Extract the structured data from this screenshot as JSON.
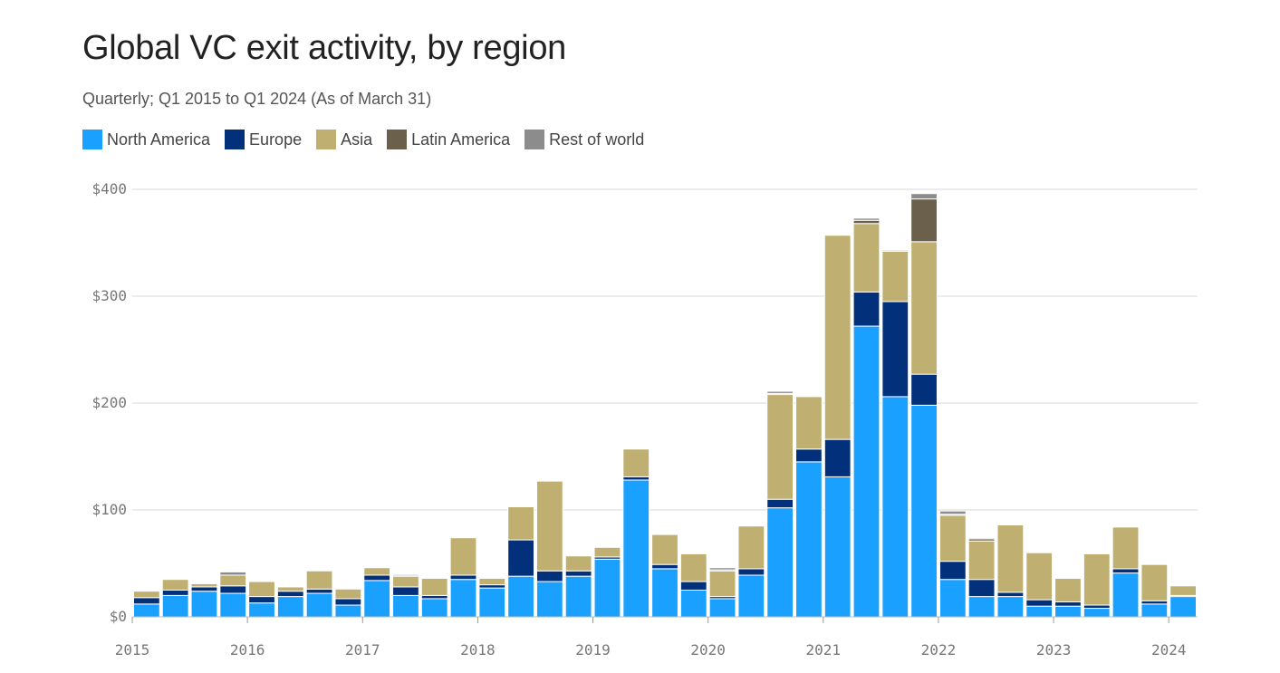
{
  "title": "Global VC exit activity, by region",
  "subtitle": "Quarterly; Q1 2015 to Q1 2024 (As of March 31)",
  "legend": [
    {
      "name": "North America",
      "color": "#1aa0ff"
    },
    {
      "name": "Europe",
      "color": "#03307a"
    },
    {
      "name": "Asia",
      "color": "#bfb071"
    },
    {
      "name": "Latin America",
      "color": "#6b604b"
    },
    {
      "name": "Rest of world",
      "color": "#8c8c8c"
    }
  ],
  "chart_data": {
    "type": "bar",
    "stacked": true,
    "title": "Global VC exit activity, by region",
    "subtitle": "Quarterly; Q1 2015 to Q1 2024 (As of March 31)",
    "xlabel": "",
    "ylabel": "",
    "ylim": [
      0,
      400
    ],
    "y_ticks": [
      0,
      100,
      200,
      300,
      400
    ],
    "y_tick_labels": [
      "$0",
      "$100",
      "$200",
      "$300",
      "$400"
    ],
    "x_tick_labels": [
      "2015",
      "2016",
      "2017",
      "2018",
      "2019",
      "2020",
      "2021",
      "2022",
      "2023",
      "2024"
    ],
    "grid": true,
    "categories": [
      "Q1 2015",
      "Q2 2015",
      "Q3 2015",
      "Q4 2015",
      "Q1 2016",
      "Q2 2016",
      "Q3 2016",
      "Q4 2016",
      "Q1 2017",
      "Q2 2017",
      "Q3 2017",
      "Q4 2017",
      "Q1 2018",
      "Q2 2018",
      "Q3 2018",
      "Q4 2018",
      "Q1 2019",
      "Q2 2019",
      "Q3 2019",
      "Q4 2019",
      "Q1 2020",
      "Q2 2020",
      "Q3 2020",
      "Q4 2020",
      "Q1 2021",
      "Q2 2021",
      "Q3 2021",
      "Q4 2021",
      "Q1 2022",
      "Q2 2022",
      "Q3 2022",
      "Q4 2022",
      "Q1 2023",
      "Q2 2023",
      "Q3 2023",
      "Q4 2023",
      "Q1 2024"
    ],
    "series": [
      {
        "name": "North America",
        "color": "#1aa0ff",
        "values": [
          12,
          20,
          24,
          22,
          13,
          19,
          22,
          11,
          34,
          20,
          17,
          35,
          27,
          38,
          33,
          38,
          54,
          128,
          45,
          25,
          17,
          39,
          102,
          145,
          131,
          272,
          206,
          198,
          35,
          19,
          19,
          10,
          10,
          8,
          41,
          12,
          19
        ]
      },
      {
        "name": "Europe",
        "color": "#03307a",
        "values": [
          6,
          5,
          4,
          7,
          6,
          5,
          4,
          6,
          5,
          8,
          3,
          4,
          3,
          34,
          10,
          5,
          2,
          3,
          4,
          8,
          2,
          6,
          8,
          12,
          35,
          32,
          89,
          29,
          17,
          16,
          4,
          6,
          4,
          3,
          4,
          3,
          1
        ]
      },
      {
        "name": "Asia",
        "color": "#bfb071",
        "values": [
          6,
          10,
          3,
          10,
          14,
          4,
          17,
          9,
          7,
          10,
          16,
          35,
          6,
          31,
          84,
          14,
          9,
          26,
          28,
          26,
          24,
          40,
          98,
          49,
          191,
          64,
          47,
          124,
          43,
          36,
          63,
          44,
          22,
          48,
          39,
          34,
          9
        ]
      },
      {
        "name": "Latin America",
        "color": "#6b604b",
        "values": [
          0,
          0,
          0,
          0,
          0,
          0,
          0,
          0,
          0,
          1,
          0,
          0,
          0,
          0,
          0,
          0,
          0,
          0,
          0,
          0,
          1,
          0,
          1,
          0,
          0,
          3,
          0,
          40,
          1,
          2,
          0,
          0,
          0,
          0,
          0,
          0,
          0
        ]
      },
      {
        "name": "Rest of world",
        "color": "#8c8c8c",
        "values": [
          0,
          0,
          0,
          3,
          0,
          0,
          0,
          0,
          0,
          1,
          0,
          0,
          0,
          0,
          0,
          0,
          0,
          0,
          0,
          0,
          2,
          0,
          2,
          0,
          0,
          2,
          1,
          5,
          3,
          1,
          0,
          0,
          0,
          0,
          0,
          0,
          0
        ]
      }
    ]
  }
}
